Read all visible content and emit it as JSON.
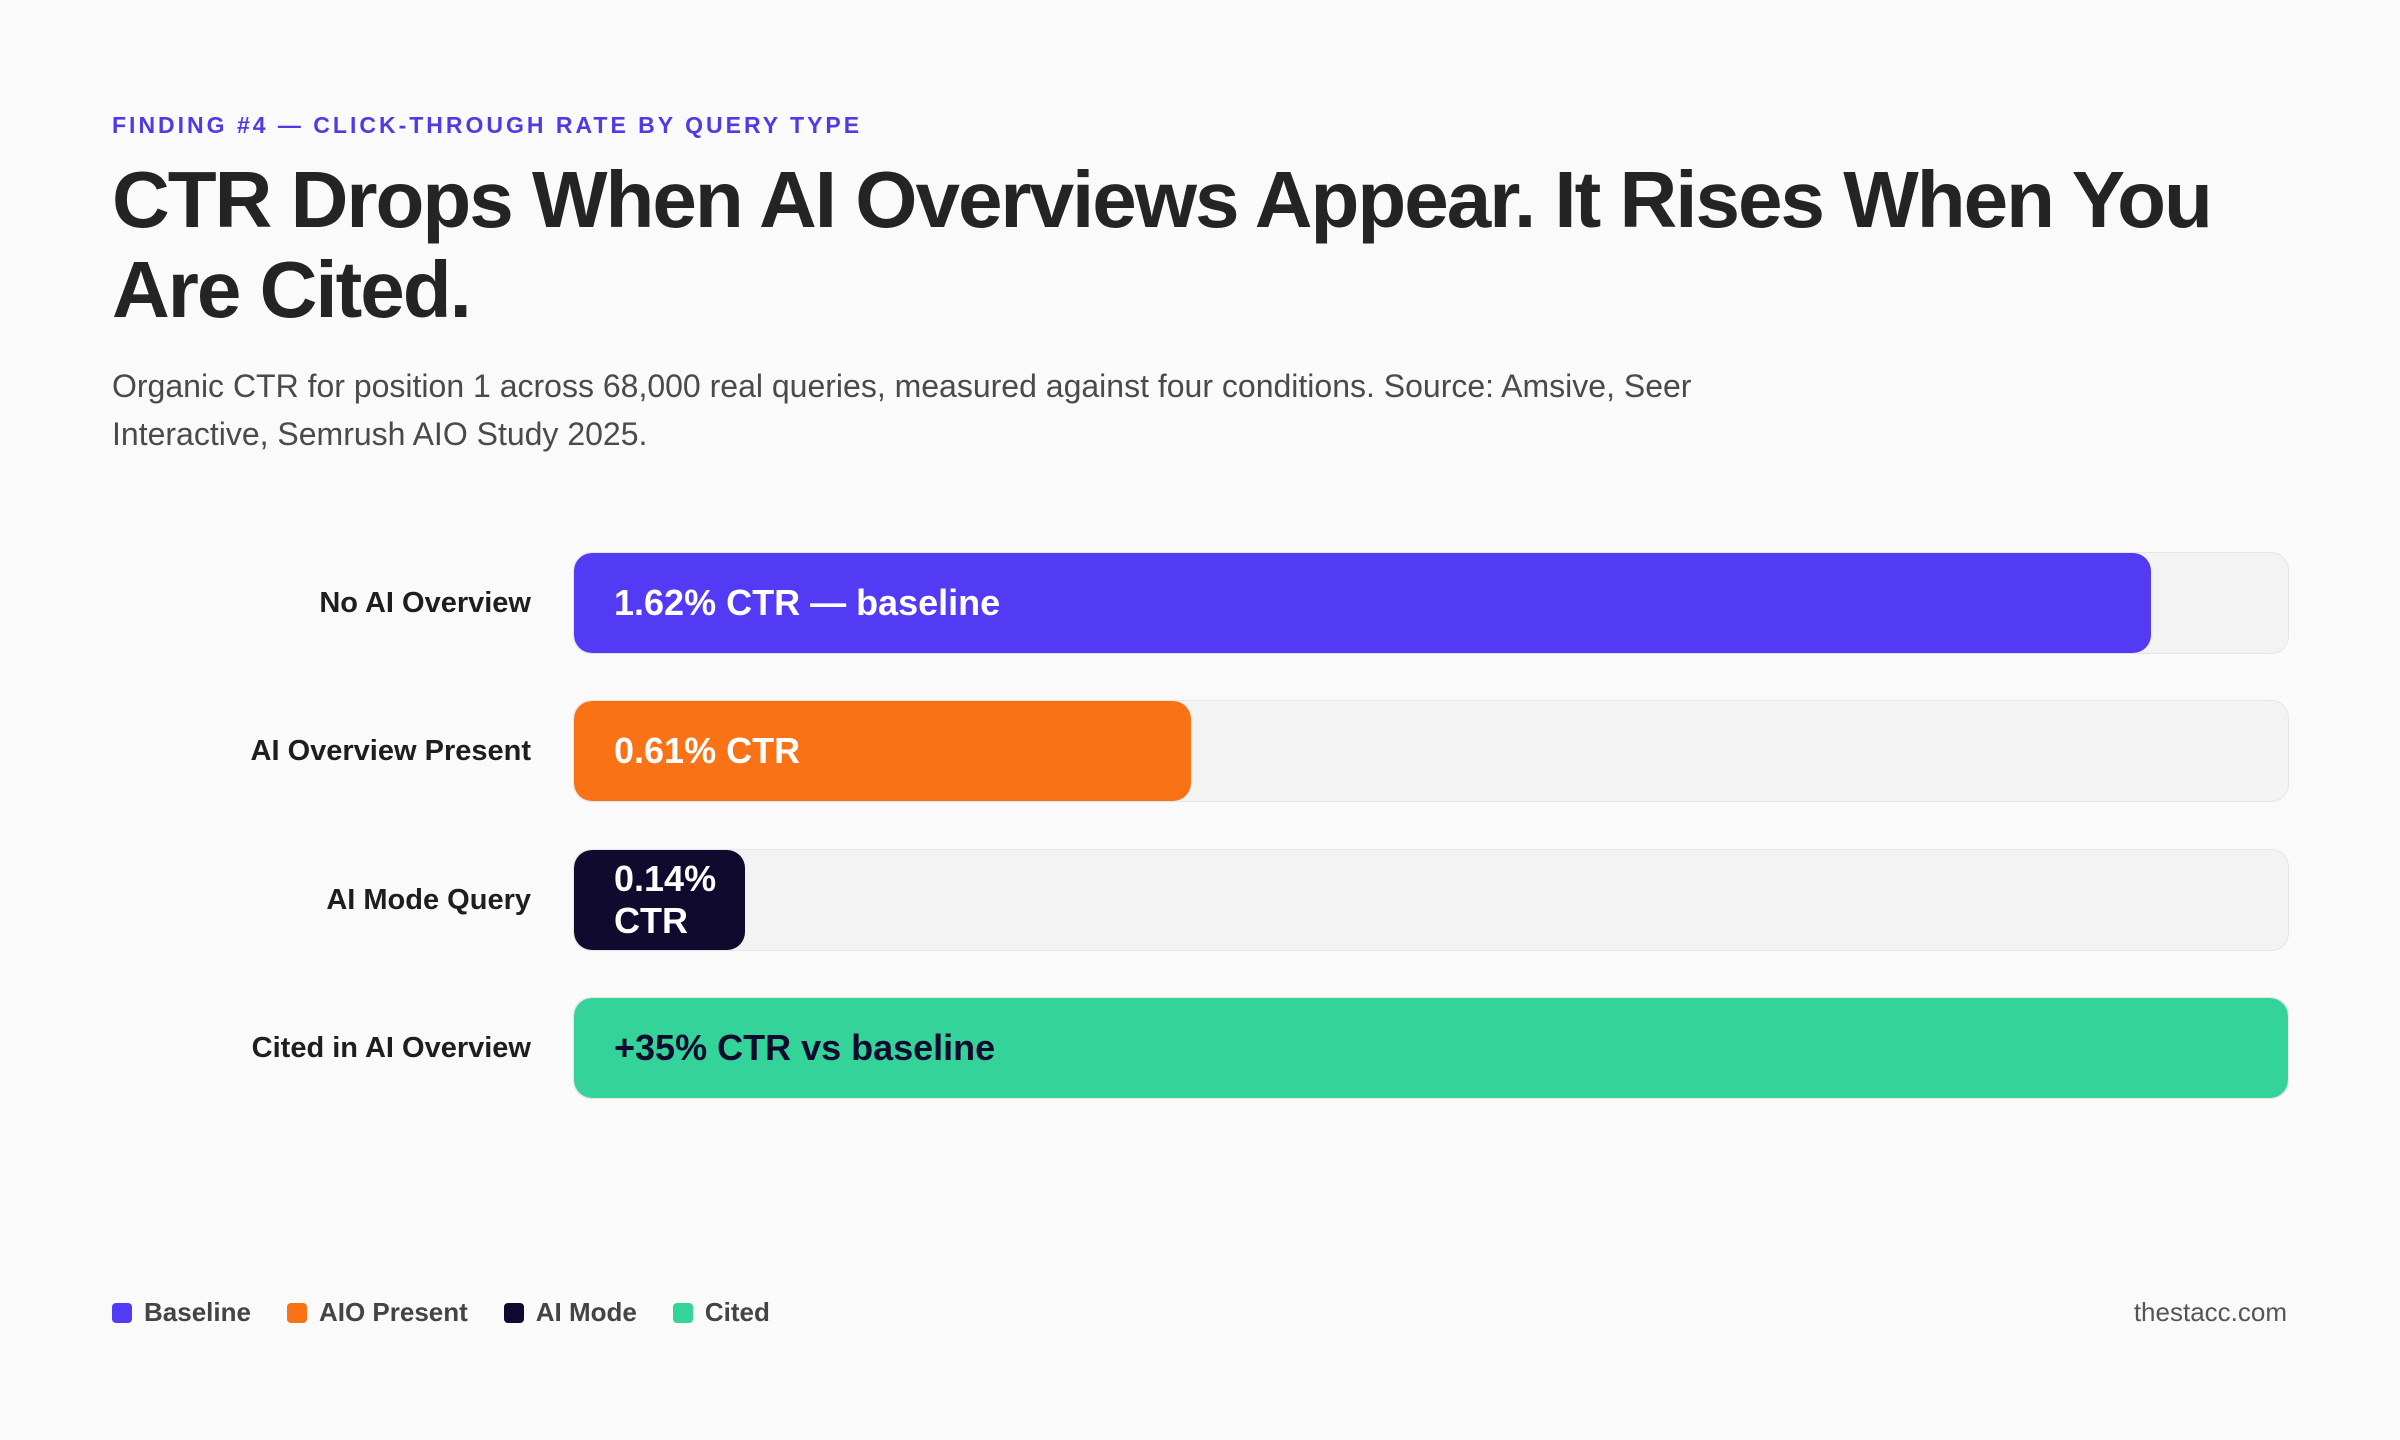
{
  "header": {
    "eyebrow": "FINDING #4 — CLICK-THROUGH RATE BY QUERY TYPE",
    "title": "CTR Drops When AI Overviews Appear. It Rises When You Are Cited.",
    "subtitle": "Organic CTR for position 1 across 68,000 real queries, measured against four conditions. Source: Amsive, Seer Interactive, Semrush AIO Study 2025."
  },
  "chart_data": {
    "type": "bar",
    "orientation": "horizontal",
    "categories": [
      "No AI Overview",
      "AI Overview Present",
      "AI Mode Query",
      "Cited in AI Overview"
    ],
    "bar_labels": [
      "1.62% CTR — baseline",
      "0.61% CTR",
      "0.14% CTR",
      "+35% CTR vs baseline"
    ],
    "fill_percent": [
      92,
      36,
      10,
      100
    ],
    "colors": [
      "#533bf5",
      "#f97316",
      "#0f0a2e",
      "#34d399"
    ],
    "label_colors": [
      "#ffffff",
      "#ffffff",
      "#ffffff",
      "#0f0a2e"
    ],
    "grid": false,
    "legend_position": "bottom-left"
  },
  "legend": [
    {
      "label": "Baseline",
      "color": "#533bf5"
    },
    {
      "label": "AIO Present",
      "color": "#f97316"
    },
    {
      "label": "AI Mode",
      "color": "#0f0a2e"
    },
    {
      "label": "Cited",
      "color": "#34d399"
    }
  ],
  "footer": {
    "credit": "thestacc.com"
  }
}
